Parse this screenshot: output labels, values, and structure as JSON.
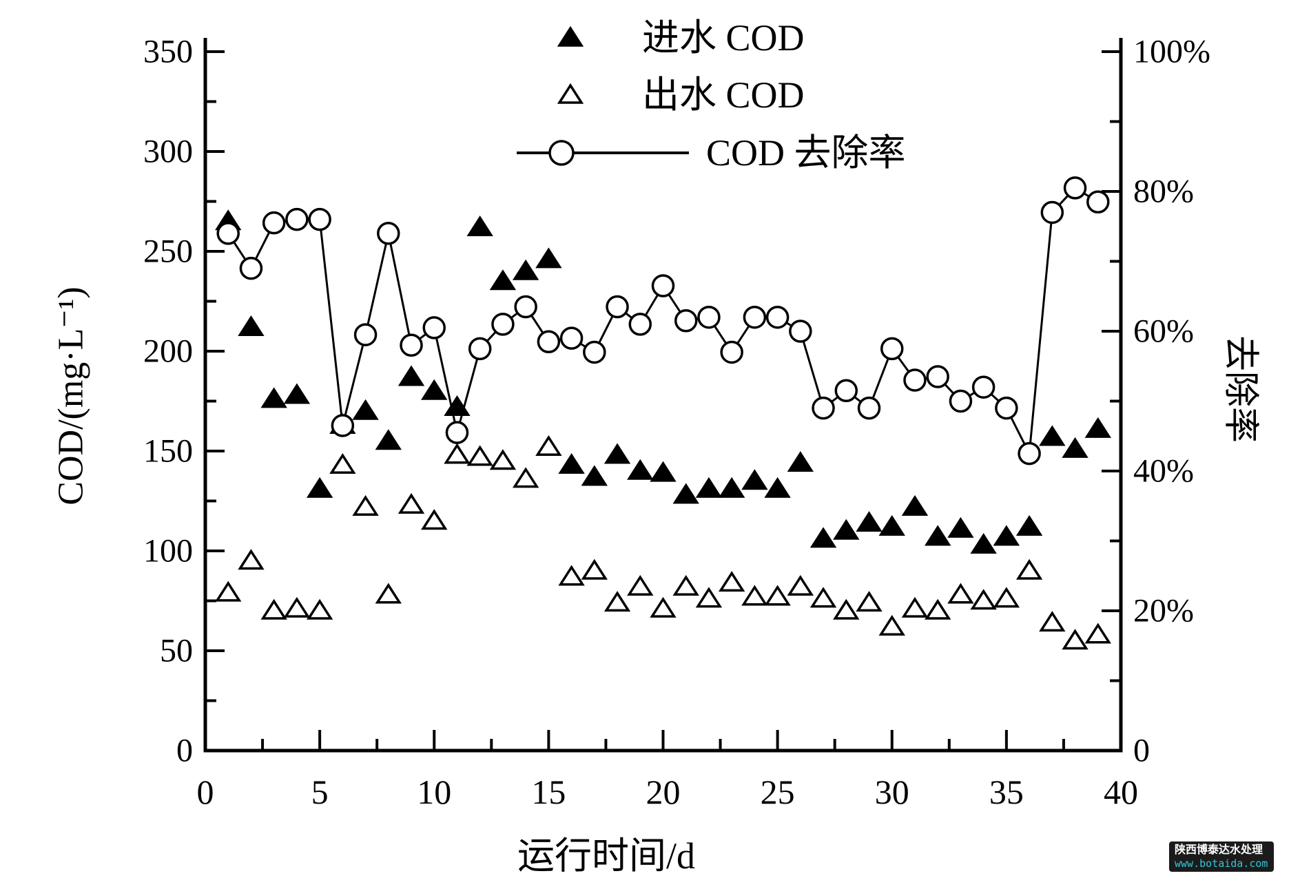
{
  "figure": {
    "legend": [
      {
        "id": "influent",
        "label": "进水 COD",
        "marker": "filled-triangle"
      },
      {
        "id": "effluent",
        "label": "出水 COD",
        "marker": "open-triangle"
      },
      {
        "id": "removal",
        "label": "COD 去除率",
        "marker": "line-open-circle"
      }
    ],
    "colors": {
      "ink": "#000000",
      "background": "#ffffff",
      "watermark_bg": "#1b1b1b",
      "watermark_text": "#ffffff",
      "watermark_url": "#33c6d6"
    },
    "watermark": {
      "line1": "陕西博泰达水处理",
      "line2": "www.botaida.com"
    }
  },
  "chart_data": {
    "type": "scatter",
    "title": "",
    "xlabel": "运行时间/d",
    "ylabel_left": "COD/(mg·L⁻¹)",
    "ylabel_right": "去除率",
    "x_ticks": [
      0,
      5,
      10,
      15,
      20,
      25,
      30,
      35,
      40
    ],
    "x_minor_step": 2.5,
    "xlim": [
      0,
      40
    ],
    "y_left": {
      "lim": [
        0,
        350
      ],
      "tick_step": 50,
      "minor_step": 25,
      "tick_labels": [
        "0",
        "50",
        "100",
        "150",
        "200",
        "250",
        "300",
        "350"
      ]
    },
    "y_right": {
      "lim": [
        0,
        100
      ],
      "tick_step": 20,
      "minor_step": 10,
      "tick_labels": [
        "0",
        "20%",
        "40%",
        "60%",
        "80%",
        "100%"
      ]
    },
    "x": [
      1,
      2,
      3,
      4,
      5,
      6,
      7,
      8,
      9,
      10,
      11,
      12,
      13,
      14,
      15,
      16,
      17,
      18,
      19,
      20,
      21,
      22,
      23,
      24,
      25,
      26,
      27,
      28,
      29,
      30,
      31,
      32,
      33,
      34,
      35,
      36,
      37,
      38,
      39
    ],
    "series": [
      {
        "name": "进水 COD",
        "axis": "left",
        "marker": "filled-triangle",
        "line": false,
        "values": [
          265,
          212,
          176,
          178,
          131,
          163,
          170,
          155,
          187,
          180,
          172,
          262,
          235,
          240,
          246,
          143,
          137,
          148,
          140,
          139,
          128,
          131,
          131,
          135,
          131,
          144,
          106,
          110,
          114,
          112,
          122,
          107,
          111,
          103,
          107,
          112,
          157,
          151,
          161
        ]
      },
      {
        "name": "出水 COD",
        "axis": "left",
        "marker": "open-triangle",
        "line": false,
        "values": [
          79,
          95,
          70,
          71,
          70,
          143,
          122,
          78,
          123,
          115,
          148,
          147,
          145,
          136,
          152,
          87,
          90,
          74,
          82,
          71,
          82,
          76,
          84,
          77,
          77,
          82,
          76,
          70,
          74,
          62,
          71,
          70,
          78,
          75,
          76,
          90,
          64,
          55,
          58
        ]
      },
      {
        "name": "COD 去除率",
        "axis": "right",
        "marker": "open-circle",
        "line": true,
        "values": [
          74,
          69,
          75.5,
          76,
          76,
          46.5,
          59.5,
          74,
          58,
          60.5,
          45.5,
          57.5,
          61,
          63.5,
          58.5,
          59,
          57,
          63.5,
          61,
          66.5,
          61.5,
          62,
          57,
          62,
          62,
          60,
          49,
          51.5,
          49,
          57.5,
          53,
          53.5,
          50,
          52,
          49,
          42.5,
          77,
          80.5,
          78.5
        ]
      }
    ],
    "legend_position": "top-center",
    "grid": false
  }
}
